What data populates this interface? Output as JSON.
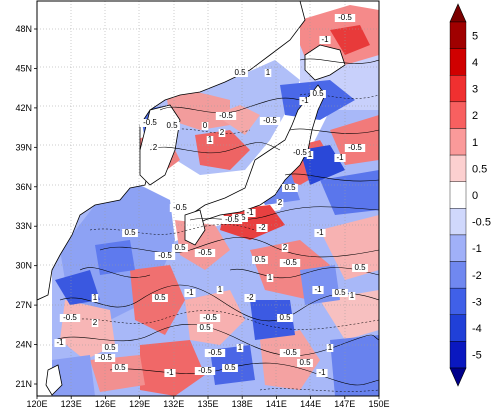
{
  "map": {
    "x_tick_labels": [
      "120E",
      "123E",
      "126E",
      "129E",
      "132E",
      "135E",
      "138E",
      "141E",
      "144E",
      "147E",
      "150E"
    ],
    "y_tick_labels": [
      "21N",
      "24N",
      "27N",
      "30N",
      "33N",
      "36N",
      "39N",
      "42N",
      "45N",
      "48N"
    ],
    "contour_labels": [
      "-1",
      "-0.5",
      "0.5",
      "1",
      "-0.5",
      "1",
      "2",
      "-0.5",
      "-1",
      "0.5",
      "0",
      "2",
      "-0.5",
      "0.5",
      "-0.5",
      "1",
      "-1",
      "-0.5",
      "0.5",
      "2",
      "-1",
      "0.5",
      "-0.5",
      "-2",
      "0.5",
      "-0.5",
      "-1",
      "0.5",
      "1",
      "2",
      "-0.5",
      "0.5",
      "-0.5",
      "1",
      "-1",
      "0.5",
      "-0.5",
      "0.5",
      "1",
      "-0.5",
      "2",
      "-1",
      "0.5",
      "-0.5",
      "-1",
      "0.5",
      "-0.5",
      "1",
      "0.5",
      "-1",
      "-0.5",
      "0.5",
      "1",
      "-0.5",
      "0.5",
      "-2",
      "1",
      "-0.5",
      "0.5",
      "-1",
      "0.5"
    ]
  },
  "colorbar": {
    "labels": [
      "5",
      "4",
      "3",
      "2",
      "1",
      "0.5",
      "0",
      "-0.5",
      "-1",
      "-2",
      "-3",
      "-4",
      "-5"
    ],
    "colors": [
      "#a00000",
      "#d00000",
      "#f03030",
      "#f86060",
      "#fa9a9a",
      "#fcd0d0",
      "#ffffff",
      "#d0d8fc",
      "#a0b0f8",
      "#7088f0",
      "#4060e8",
      "#2040d8",
      "#0a18c0"
    ],
    "min_color": "#00008b",
    "max_color": "#7a0000"
  }
}
